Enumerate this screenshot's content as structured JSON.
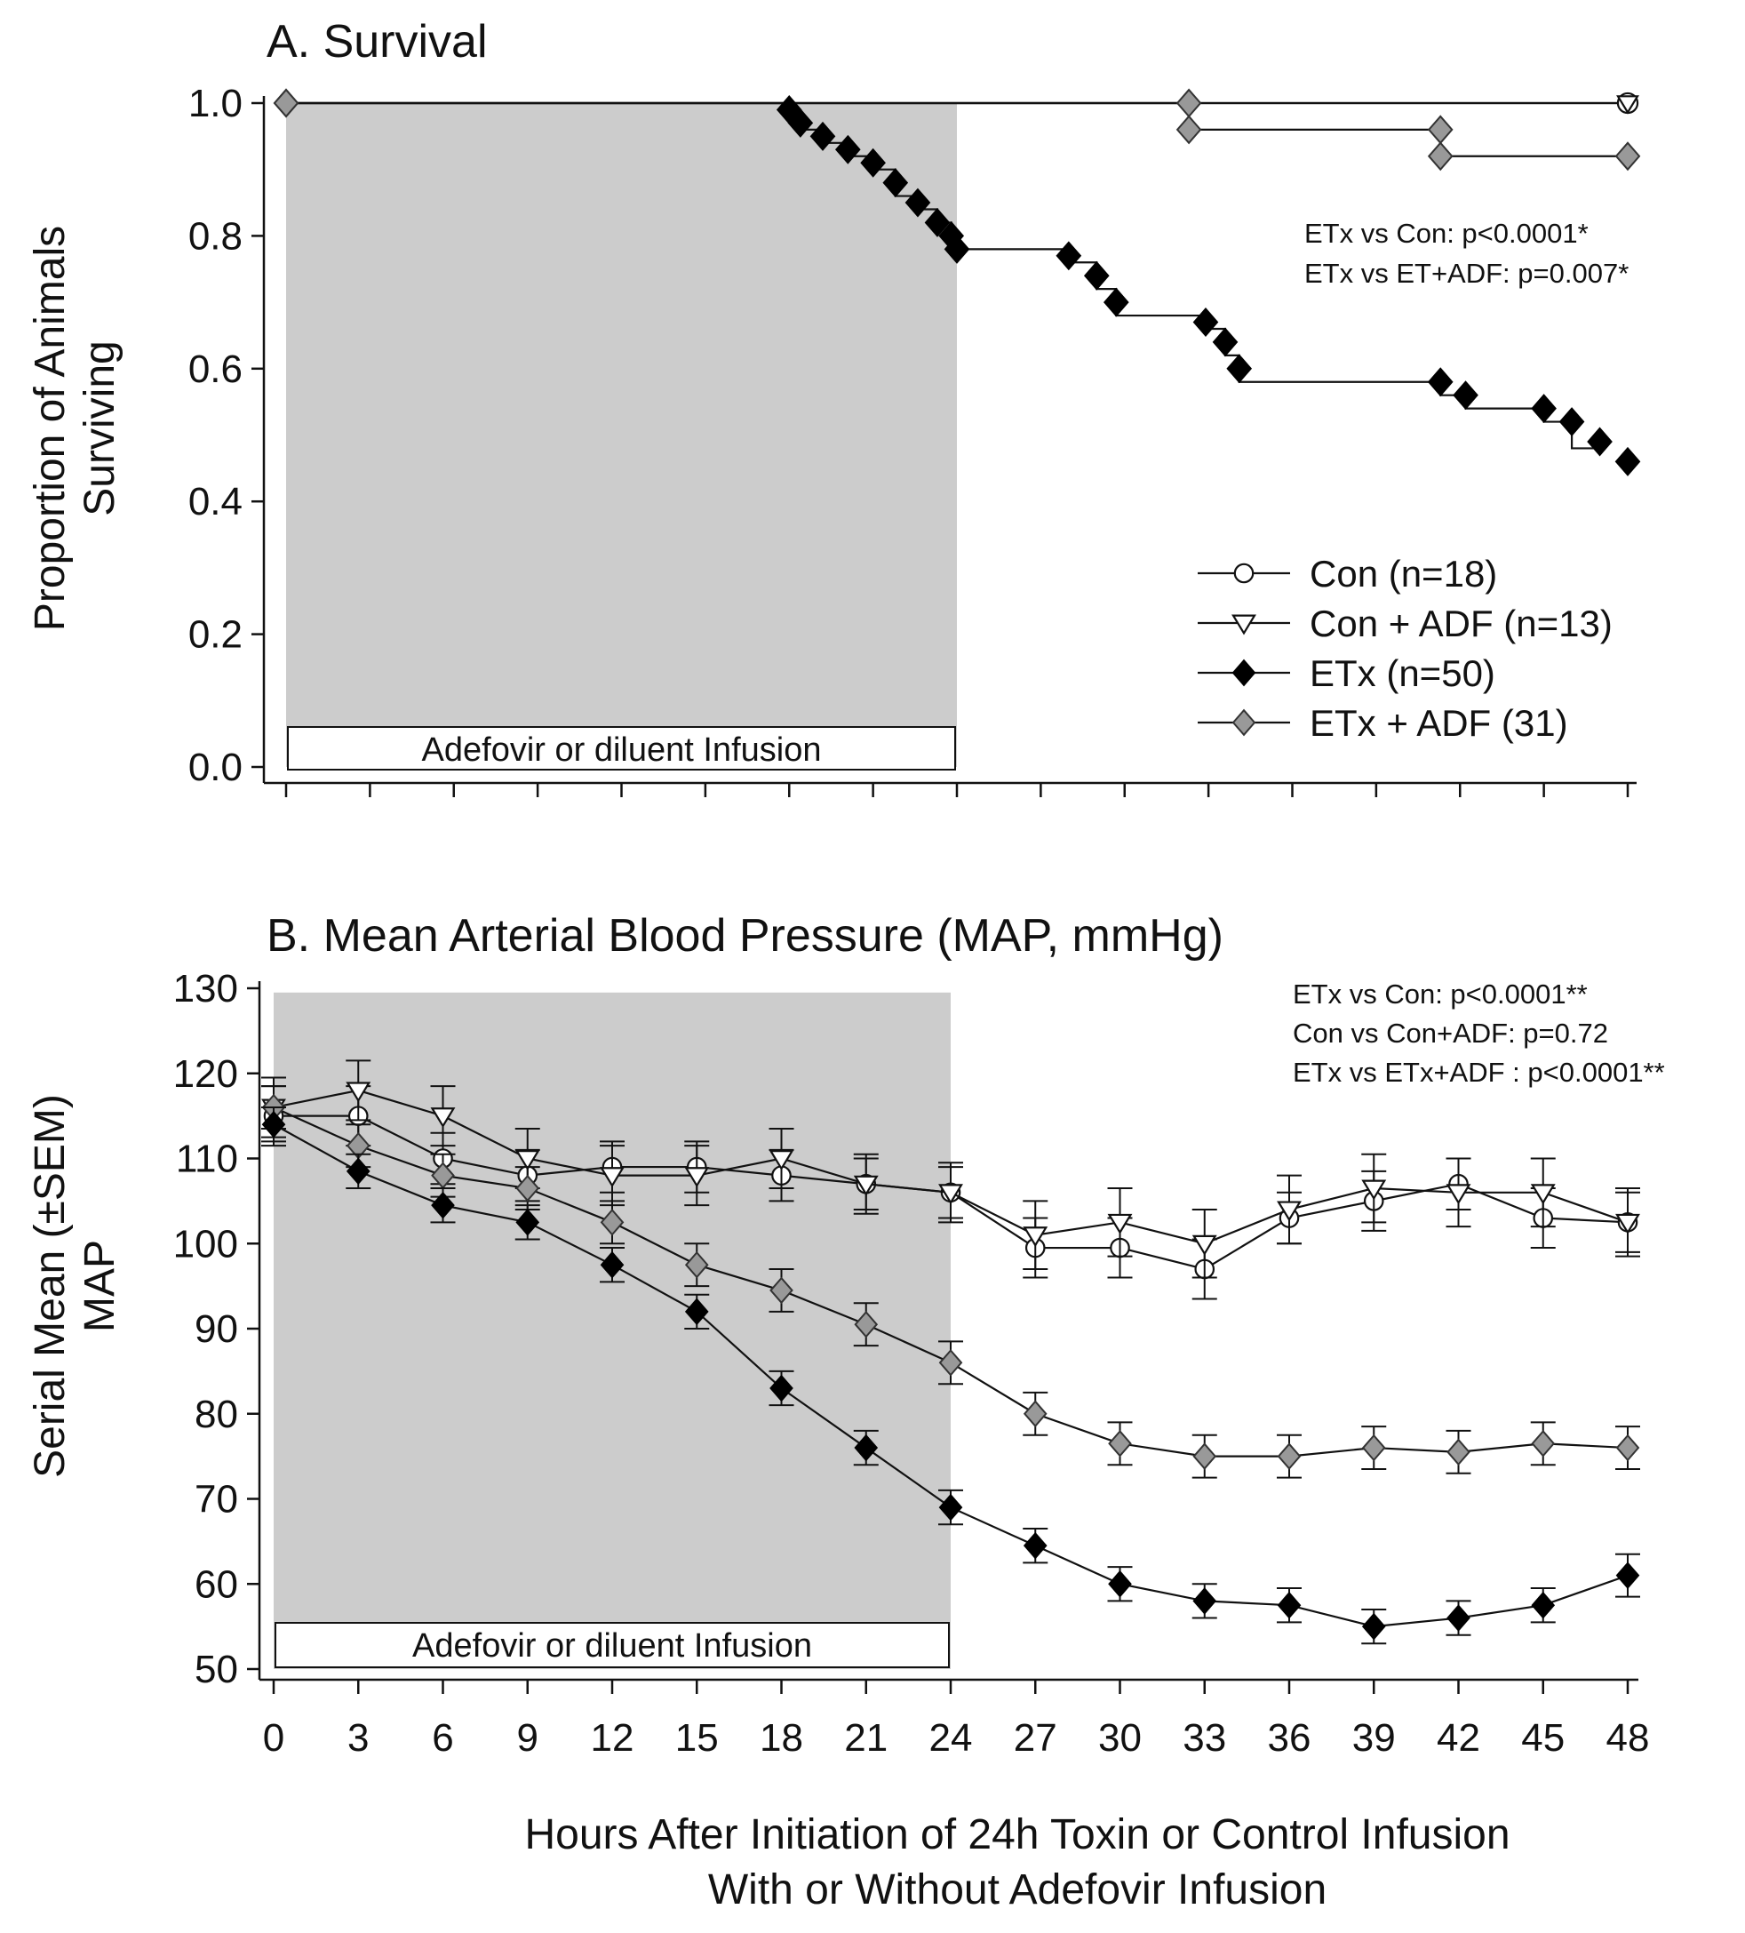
{
  "chart_data": [
    {
      "panel": "A",
      "type": "line",
      "subtype": "kaplan-meier step",
      "title": "A. Survival",
      "xlabel": "",
      "ylabel": [
        "Proportion of Animals",
        "Surviving"
      ],
      "xlim": [
        0,
        48
      ],
      "ylim": [
        0,
        1.0
      ],
      "yticks": [
        "0.0",
        "0.2",
        "0.4",
        "0.6",
        "0.8",
        "1.0"
      ],
      "xticks": [
        0,
        3,
        6,
        9,
        12,
        15,
        18,
        21,
        24,
        27,
        30,
        33,
        36,
        39,
        42,
        45,
        48
      ],
      "shaded_region": {
        "x": [
          0,
          24
        ],
        "label": "Adefovir or diluent Infusion"
      },
      "stats_text": [
        "ETx vs Con: p<0.0001*",
        "ETx vs ET+ADF: p=0.007*"
      ],
      "legend": [
        "Con (n=18)",
        "Con + ADF (n=13)",
        "ETx (n=50)",
        "ETx + ADF (31)"
      ],
      "series": [
        {
          "name": "Con (n=18)",
          "marker": "circle-open",
          "x": [
            0,
            48
          ],
          "y": [
            1.0,
            1.0
          ]
        },
        {
          "name": "Con + ADF (n=13)",
          "marker": "triangle-down-open",
          "x": [
            0,
            48
          ],
          "y": [
            1.0,
            1.0
          ]
        },
        {
          "name": "ETx (n=50)",
          "marker": "diamond-black",
          "x": [
            0,
            18.0,
            18.0,
            18.4,
            18.4,
            19.2,
            19.2,
            20.1,
            20.1,
            21.0,
            21.0,
            21.8,
            21.8,
            22.6,
            22.6,
            23.3,
            23.3,
            23.8,
            23.8,
            24.0,
            24.0,
            28.0,
            28.0,
            29.0,
            29.0,
            29.7,
            29.7,
            32.9,
            32.9,
            33.6,
            33.6,
            34.1,
            34.1,
            41.3,
            41.3,
            42.2,
            42.2,
            45.0,
            45.0,
            46.0,
            46.0,
            47.0
          ],
          "y": [
            1.0,
            1.0,
            0.98,
            0.98,
            0.96,
            0.96,
            0.94,
            0.94,
            0.92,
            0.92,
            0.9,
            0.9,
            0.86,
            0.86,
            0.84,
            0.84,
            0.82,
            0.82,
            0.8,
            0.8,
            0.78,
            0.78,
            0.76,
            0.76,
            0.72,
            0.72,
            0.68,
            0.68,
            0.66,
            0.66,
            0.62,
            0.62,
            0.58,
            0.58,
            0.56,
            0.56,
            0.54,
            0.54,
            0.52,
            0.52,
            0.48,
            0.48
          ],
          "points_x": [
            0,
            18.0,
            18.4,
            19.2,
            20.1,
            21.0,
            21.8,
            22.6,
            23.3,
            23.8,
            24.0,
            28.0,
            29.0,
            29.7,
            32.9,
            33.6,
            34.1,
            41.3,
            42.2,
            45.0,
            46.0,
            47.0,
            48.0
          ],
          "points_y": [
            1.0,
            0.99,
            0.97,
            0.95,
            0.93,
            0.91,
            0.88,
            0.85,
            0.82,
            0.8,
            0.78,
            0.77,
            0.74,
            0.7,
            0.67,
            0.64,
            0.6,
            0.58,
            0.56,
            0.54,
            0.52,
            0.49,
            0.46
          ]
        },
        {
          "name": "ETx + ADF (31)",
          "marker": "diamond-gray",
          "x": [
            0,
            32.3,
            32.3,
            41.3,
            41.3,
            48
          ],
          "y": [
            1.0,
            1.0,
            0.96,
            0.96,
            0.92,
            0.92
          ],
          "points_x": [
            0,
            32.3,
            32.3,
            41.3,
            41.3,
            48
          ],
          "points_y": [
            1.0,
            1.0,
            0.96,
            0.96,
            0.92,
            0.92
          ]
        }
      ]
    },
    {
      "panel": "B",
      "type": "line",
      "subtype": "line with error bars",
      "title": "B. Mean Arterial Blood Pressure (MAP, mmHg)",
      "xlabel": [
        "Hours After Initiation of 24h Toxin or Control Infusion",
        "With or Without Adefovir Infusion"
      ],
      "ylabel": [
        "Serial Mean (±SEM)",
        "MAP"
      ],
      "xlim": [
        0,
        48
      ],
      "ylim": [
        50,
        130
      ],
      "yticks": [
        50,
        60,
        70,
        80,
        90,
        100,
        110,
        120,
        130
      ],
      "xticks": [
        0,
        3,
        6,
        9,
        12,
        15,
        18,
        21,
        24,
        27,
        30,
        33,
        36,
        39,
        42,
        45,
        48
      ],
      "shaded_region": {
        "x": [
          0,
          24
        ],
        "label": "Adefovir or diluent Infusion"
      },
      "stats_text": [
        "ETx vs Con: p<0.0001**",
        "Con vs Con+ADF: p=0.72",
        "ETx vs ETx+ADF : p<0.0001**"
      ],
      "x": [
        0,
        3,
        6,
        9,
        12,
        15,
        18,
        21,
        24,
        27,
        30,
        33,
        36,
        39,
        42,
        45,
        48
      ],
      "series": [
        {
          "name": "Con",
          "marker": "circle-open",
          "values": [
            115,
            115,
            110,
            108,
            109,
            109,
            108,
            107,
            106,
            99.5,
            99.5,
            97,
            103,
            105,
            107,
            103,
            102.5
          ],
          "sem": [
            3.5,
            3.5,
            3,
            3,
            3,
            3,
            3,
            3,
            3,
            3.5,
            3.5,
            3.5,
            3,
            3.5,
            3,
            3.5,
            3.5
          ]
        },
        {
          "name": "Con + ADF",
          "marker": "triangle-down-open",
          "values": [
            116,
            118,
            115,
            110,
            108,
            108,
            110,
            107,
            106,
            101,
            102.5,
            100,
            104,
            106.5,
            106,
            106,
            102.5
          ],
          "sem": [
            3.5,
            3.5,
            3.5,
            3.5,
            3.5,
            3.5,
            3.5,
            3.5,
            3.5,
            4,
            4,
            4,
            4,
            4,
            4,
            4,
            4
          ]
        },
        {
          "name": "ETx",
          "marker": "diamond-black",
          "values": [
            114,
            108.5,
            104.5,
            102.5,
            97.5,
            92,
            83,
            76,
            69,
            64.5,
            60,
            58,
            57.5,
            55,
            56,
            57.5,
            61
          ],
          "sem": [
            2,
            2,
            2,
            2,
            2,
            2,
            2,
            2,
            2,
            2,
            2,
            2,
            2,
            2,
            2,
            2,
            2.5
          ]
        },
        {
          "name": "ETx + ADF",
          "marker": "diamond-gray",
          "values": [
            116,
            111.5,
            108,
            106.5,
            102.5,
            97.5,
            94.5,
            90.5,
            86,
            80,
            76.5,
            75,
            75,
            76,
            75.5,
            76.5,
            76
          ],
          "sem": [
            2.5,
            2.5,
            2.5,
            2.5,
            2.5,
            2.5,
            2.5,
            2.5,
            2.5,
            2.5,
            2.5,
            2.5,
            2.5,
            2.5,
            2.5,
            2.5,
            2.5
          ]
        }
      ]
    }
  ]
}
